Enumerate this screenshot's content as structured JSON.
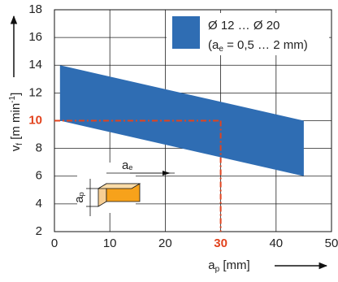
{
  "chart_data": {
    "type": "band",
    "x_label": {
      "main": "a",
      "sub": "p",
      "rest": " [mm]"
    },
    "y_label": {
      "main": "v",
      "sub": "f",
      "rest": " [m min",
      "sup": "-1",
      "end": "]"
    },
    "x": [
      1,
      45
    ],
    "series": [
      {
        "name": "Ø 12 … Ø 20",
        "color": "#2f6db3",
        "upper": [
          14,
          10
        ],
        "lower": [
          10,
          6
        ]
      }
    ],
    "legend_note": {
      "prefix": "(a",
      "sub": "e",
      "suffix": " = 0,5 … 2 mm)"
    },
    "xlim": [
      0,
      50
    ],
    "xticks": [
      0,
      10,
      20,
      30,
      40,
      50
    ],
    "ylim": [
      2,
      18
    ],
    "yticks": [
      2,
      4,
      6,
      8,
      10,
      12,
      14,
      16,
      18
    ],
    "grid": true,
    "highlight": {
      "x": 30,
      "y": 10,
      "color": "#e2431e"
    },
    "icon_labels": {
      "ae": {
        "main": "a",
        "sub": "e"
      },
      "ap": {
        "main": "a",
        "sub": "p"
      }
    }
  }
}
